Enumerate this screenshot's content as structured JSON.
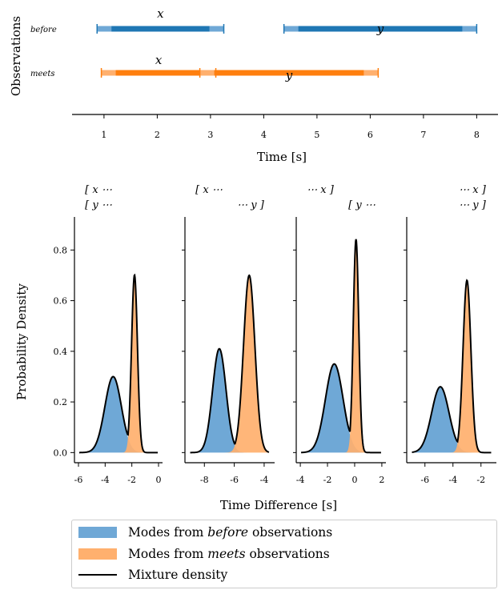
{
  "chart_data": [
    {
      "type": "interval",
      "ylabel": "Observations",
      "xlabel": "Time [s]",
      "xlim": [
        0.4,
        8.4
      ],
      "xticks": [
        1,
        2,
        3,
        4,
        5,
        6,
        7,
        8
      ],
      "rows": [
        {
          "label": "before",
          "color": "#1f77b4",
          "bars": [
            {
              "name": "x",
              "start": 0.87,
              "end": 3.25
            },
            {
              "name": "y",
              "start": 4.38,
              "end": 8.0
            }
          ]
        },
        {
          "label": "meets",
          "color": "#ff7f0e",
          "bars": [
            {
              "name": "x",
              "start": 0.95,
              "end": 3.1
            },
            {
              "name": "y",
              "start": 2.8,
              "end": 6.15
            }
          ]
        }
      ]
    },
    {
      "type": "area",
      "ylabel": "Probability Density",
      "xlabel": "Time Difference [s]",
      "ylim": [
        -0.04,
        0.88
      ],
      "yticks": [
        0.0,
        0.2,
        0.4,
        0.6,
        0.8
      ],
      "panels": [
        {
          "header_top": [
            "[ x ···",
            ""
          ],
          "header_bottom": [
            "[ y ···",
            ""
          ],
          "xlim": [
            -6.3,
            0.3
          ],
          "xticks": [
            -6,
            -4,
            -2,
            0
          ],
          "before_mode": {
            "mu": -3.4,
            "sigma": 0.62,
            "peak": 0.3
          },
          "meets_mode": {
            "mu": -1.8,
            "sigma": 0.22,
            "peak": 0.7
          }
        },
        {
          "header_top": [
            "[ x ···",
            ""
          ],
          "header_bottom": [
            "",
            "··· y ]"
          ],
          "xlim": [
            -9.3,
            -3.3
          ],
          "xticks": [
            -8,
            -6,
            -4
          ],
          "before_mode": {
            "mu": -7.0,
            "sigma": 0.45,
            "peak": 0.41
          },
          "meets_mode": {
            "mu": -5.0,
            "sigma": 0.38,
            "peak": 0.7
          }
        },
        {
          "header_top": [
            "··· x ]",
            ""
          ],
          "header_bottom": [
            "",
            "[ y ···"
          ],
          "xlim": [
            -4.3,
            2.3
          ],
          "xticks": [
            -4,
            -2,
            0,
            2
          ],
          "before_mode": {
            "mu": -1.5,
            "sigma": 0.65,
            "peak": 0.35
          },
          "meets_mode": {
            "mu": 0.1,
            "sigma": 0.2,
            "peak": 0.84
          }
        },
        {
          "header_top": [
            "",
            "··· x ]"
          ],
          "header_bottom": [
            "",
            "··· y ]"
          ],
          "xlim": [
            -7.3,
            -0.9
          ],
          "xticks": [
            -6,
            -4,
            -2
          ],
          "before_mode": {
            "mu": -4.9,
            "sigma": 0.62,
            "peak": 0.26
          },
          "meets_mode": {
            "mu": -3.0,
            "sigma": 0.28,
            "peak": 0.68
          }
        }
      ]
    }
  ],
  "legend": {
    "items": [
      {
        "prefix": "Modes from ",
        "emph": "before",
        "suffix": " observations",
        "color": "#6fa8d6"
      },
      {
        "prefix": "Modes from ",
        "emph": "meets",
        "suffix": " observations",
        "color": "#ffb06e"
      },
      {
        "prefix": "Mixture density",
        "emph": "",
        "suffix": "",
        "color": "#000000"
      }
    ]
  }
}
